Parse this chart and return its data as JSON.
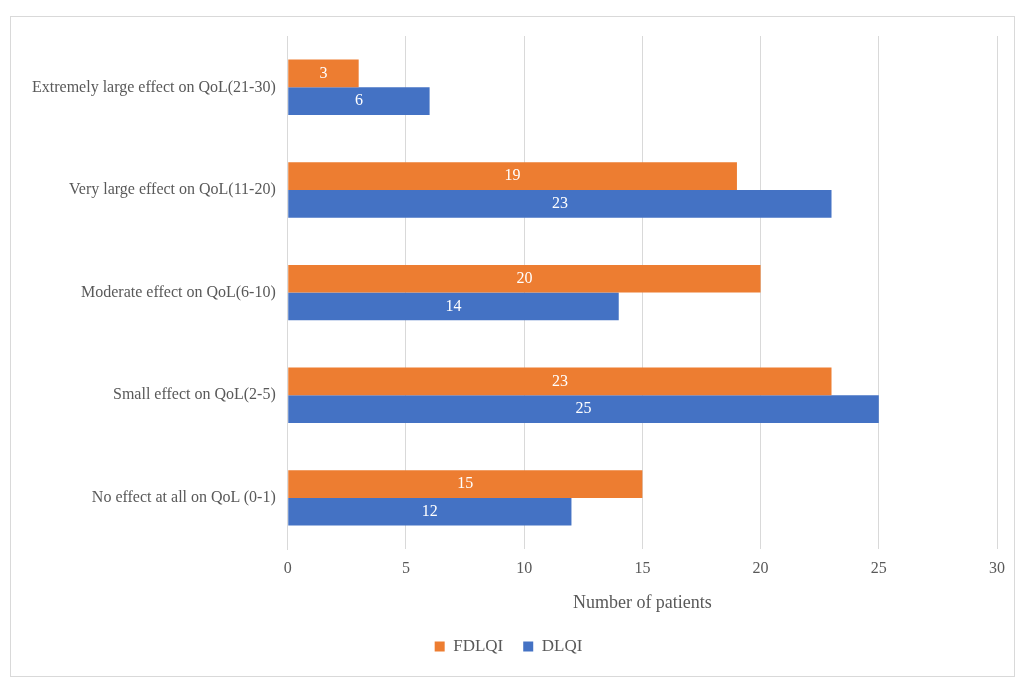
{
  "chart_data": {
    "type": "bar",
    "orientation": "horizontal",
    "xlabel": "Number of patients",
    "categories": [
      "Extremely large effect on QoL(21-30)",
      "Very large effect on QoL(11-20)",
      "Moderate effect on QoL(6-10)",
      "Small effect on QoL(2-5)",
      "No effect at all on QoL (0-1)"
    ],
    "series": [
      {
        "name": "FDLQI",
        "color": "#ed7d31",
        "values": [
          3,
          19,
          20,
          23,
          15
        ]
      },
      {
        "name": "DLQI",
        "color": "#4472c4",
        "values": [
          6,
          23,
          14,
          25,
          12
        ]
      }
    ],
    "xlim": [
      0,
      30
    ],
    "xticks": [
      0,
      5,
      10,
      15,
      20,
      25,
      30
    ],
    "grid": "x",
    "legend": "bottom",
    "data_labels": true
  }
}
